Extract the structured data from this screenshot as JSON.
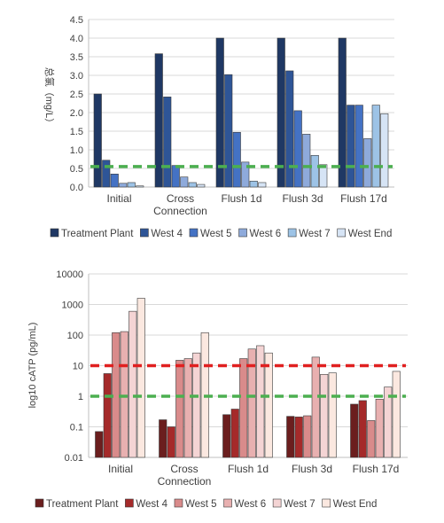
{
  "chart_data": [
    {
      "type": "bar",
      "ylabel": "总氯（mg/L）",
      "ylim": [
        0,
        4.5
      ],
      "yticks": [
        "0.0",
        "0.5",
        "1.0",
        "1.5",
        "2.0",
        "2.5",
        "3.0",
        "3.5",
        "4.0",
        "4.5"
      ],
      "categories": [
        [
          "Initial"
        ],
        [
          "Cross",
          "Connection"
        ],
        [
          "Flush 1d"
        ],
        [
          "Flush 3d"
        ],
        [
          "Flush 17d"
        ]
      ],
      "series": [
        {
          "name": "Treatment Plant",
          "color": "#1f3864",
          "values": [
            2.5,
            3.58,
            4.0,
            4.0,
            4.0
          ]
        },
        {
          "name": "West 4",
          "color": "#2e5597",
          "values": [
            0.72,
            2.42,
            3.02,
            3.12,
            2.2
          ]
        },
        {
          "name": "West 5",
          "color": "#4472c4",
          "values": [
            0.35,
            0.58,
            1.47,
            2.05,
            2.2
          ]
        },
        {
          "name": "West 6",
          "color": "#8eaadb",
          "values": [
            0.1,
            0.27,
            0.67,
            1.42,
            1.3
          ]
        },
        {
          "name": "West 7",
          "color": "#9dc3e6",
          "values": [
            0.12,
            0.12,
            0.16,
            0.85,
            2.2
          ]
        },
        {
          "name": "West End",
          "color": "#d6e4f5",
          "values": [
            0.03,
            0.07,
            0.12,
            0.6,
            1.97
          ]
        }
      ],
      "reference_lines": [
        {
          "value": 0.55,
          "color": "#4caf50"
        }
      ],
      "legend": "bottom"
    },
    {
      "type": "bar",
      "ylabel": "log10 cATP (pg/mL)",
      "scale": "log",
      "ylim": [
        0.01,
        10000
      ],
      "yticks": [
        "0.01",
        "0.1",
        "1",
        "10",
        "100",
        "1000",
        "10000"
      ],
      "categories": [
        [
          "Initial"
        ],
        [
          "Cross",
          "Connection"
        ],
        [
          "Flush 1d"
        ],
        [
          "Flush 3d"
        ],
        [
          "Flush 17d"
        ]
      ],
      "series": [
        {
          "name": "Treatment Plant",
          "color": "#6b1e1e",
          "values": [
            0.07,
            0.17,
            0.25,
            0.22,
            0.55
          ]
        },
        {
          "name": "West 4",
          "color": "#a52a2a",
          "values": [
            5.5,
            0.1,
            0.38,
            0.21,
            0.72
          ]
        },
        {
          "name": "West 5",
          "color": "#d98b8b",
          "values": [
            120,
            15,
            17,
            0.23,
            0.16
          ]
        },
        {
          "name": "West 6",
          "color": "#e8b0b0",
          "values": [
            130,
            17,
            35,
            19,
            0.8
          ]
        },
        {
          "name": "West 7",
          "color": "#f4d4d4",
          "values": [
            600,
            26,
            45,
            5.2,
            2.0
          ]
        },
        {
          "name": "West End",
          "color": "#fbe8e0",
          "values": [
            1600,
            120,
            26,
            5.8,
            6.5
          ]
        }
      ],
      "reference_lines": [
        {
          "value": 10,
          "color": "#e02020"
        },
        {
          "value": 1,
          "color": "#4caf50"
        }
      ],
      "legend": "bottom"
    }
  ]
}
